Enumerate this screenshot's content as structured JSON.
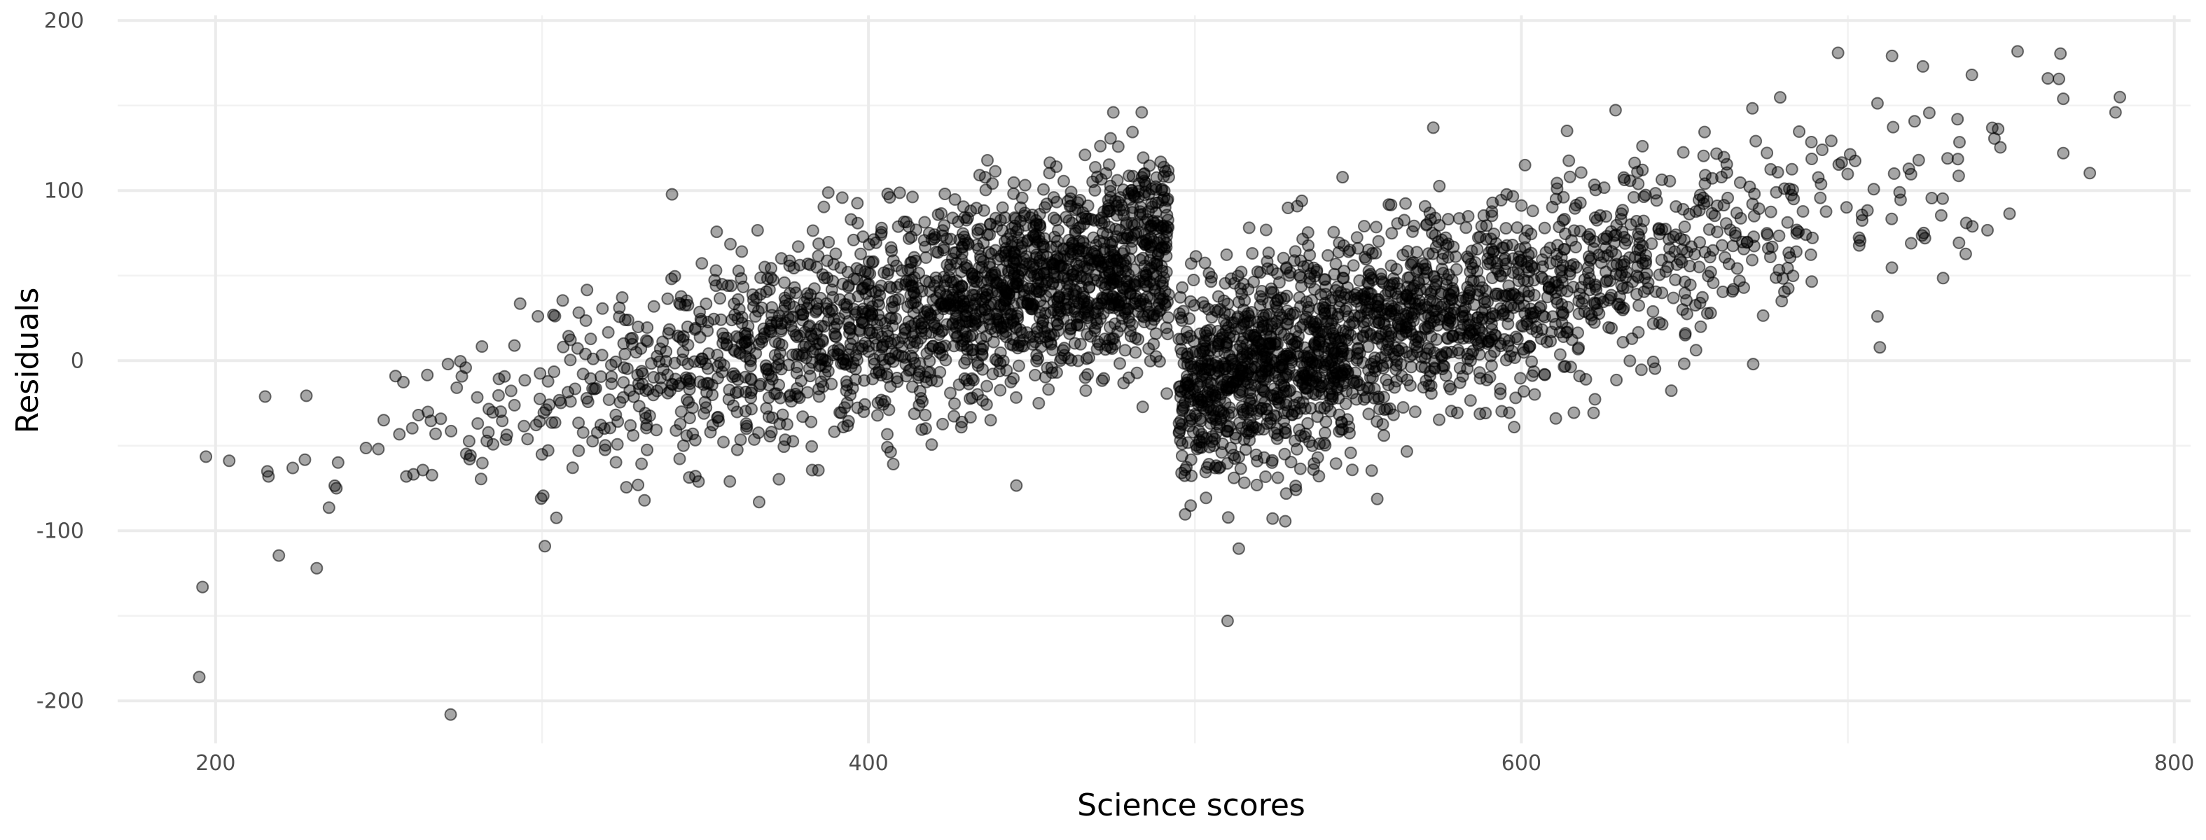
{
  "chart_data": {
    "type": "scatter",
    "title": "",
    "xlabel": "Science scores",
    "ylabel": "Residuals",
    "xlim": [
      170,
      805
    ],
    "ylim": [
      -225,
      203
    ],
    "x_ticks": [
      200,
      400,
      600,
      800
    ],
    "x_tick_labels": [
      "200",
      "400",
      "600",
      "800"
    ],
    "y_ticks": [
      -200,
      -100,
      0,
      100,
      200
    ],
    "y_tick_labels": [
      "-200",
      "-100",
      "0",
      "100",
      "200"
    ],
    "grid": true,
    "legend": "none",
    "point_color": "#000000",
    "point_alpha": 0.35,
    "n_points": 4000,
    "segments": [
      {
        "x_range": [
          195,
          492
        ],
        "approx_intercept": -158,
        "approx_slope": 0.45,
        "y_spread_sd": 30
      },
      {
        "x_range": [
          495,
          785
        ],
        "approx_intercept": -290,
        "approx_slope": 0.55,
        "y_spread_sd": 30
      }
    ],
    "notable_points": [
      {
        "x": 195,
        "y": -186
      },
      {
        "x": 231,
        "y": -122
      },
      {
        "x": 237,
        "y": -75
      },
      {
        "x": 272,
        "y": -208
      },
      {
        "x": 475,
        "y": 146
      },
      {
        "x": 510,
        "y": -153
      },
      {
        "x": 573,
        "y": 137
      },
      {
        "x": 697,
        "y": 181
      },
      {
        "x": 723,
        "y": 173
      },
      {
        "x": 738,
        "y": 168
      },
      {
        "x": 766,
        "y": 154
      },
      {
        "x": 766,
        "y": 122
      },
      {
        "x": 782,
        "y": 146
      },
      {
        "x": 671,
        "y": -2
      }
    ]
  }
}
